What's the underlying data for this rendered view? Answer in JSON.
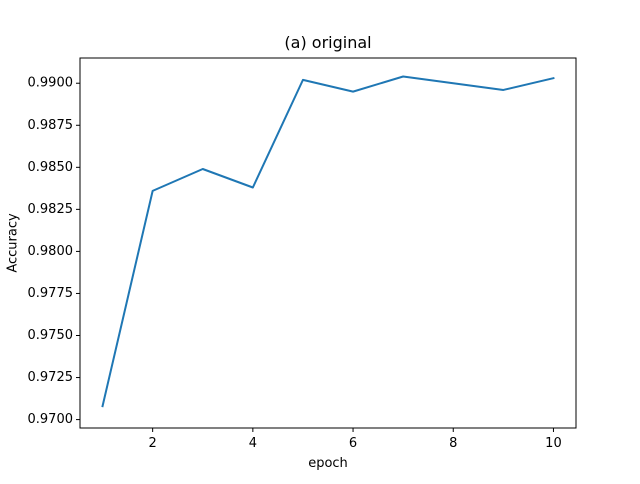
{
  "chart_data": {
    "type": "line",
    "title": "(a) original",
    "xlabel": "epoch",
    "ylabel": "Accuracy",
    "xlim": [
      0.55,
      10.45
    ],
    "ylim": [
      0.9695,
      0.9915
    ],
    "xticks": [
      2,
      4,
      6,
      8,
      10
    ],
    "xtick_labels": [
      "2",
      "4",
      "6",
      "8",
      "10"
    ],
    "yticks": [
      0.97,
      0.9725,
      0.975,
      0.9775,
      0.98,
      0.9825,
      0.985,
      0.9875,
      0.99
    ],
    "ytick_labels": [
      "0.9700",
      "0.9725",
      "0.9750",
      "0.9775",
      "0.9800",
      "0.9825",
      "0.9850",
      "0.9875",
      "0.9900"
    ],
    "grid": false,
    "legend": null,
    "series": [
      {
        "color": "#1f77b4",
        "x": [
          1,
          2,
          3,
          4,
          5,
          6,
          7,
          8,
          9,
          10
        ],
        "values": [
          0.9708,
          0.9836,
          0.9849,
          0.9838,
          0.9902,
          0.9895,
          0.9904,
          0.99,
          0.9896,
          0.9903
        ]
      }
    ]
  }
}
